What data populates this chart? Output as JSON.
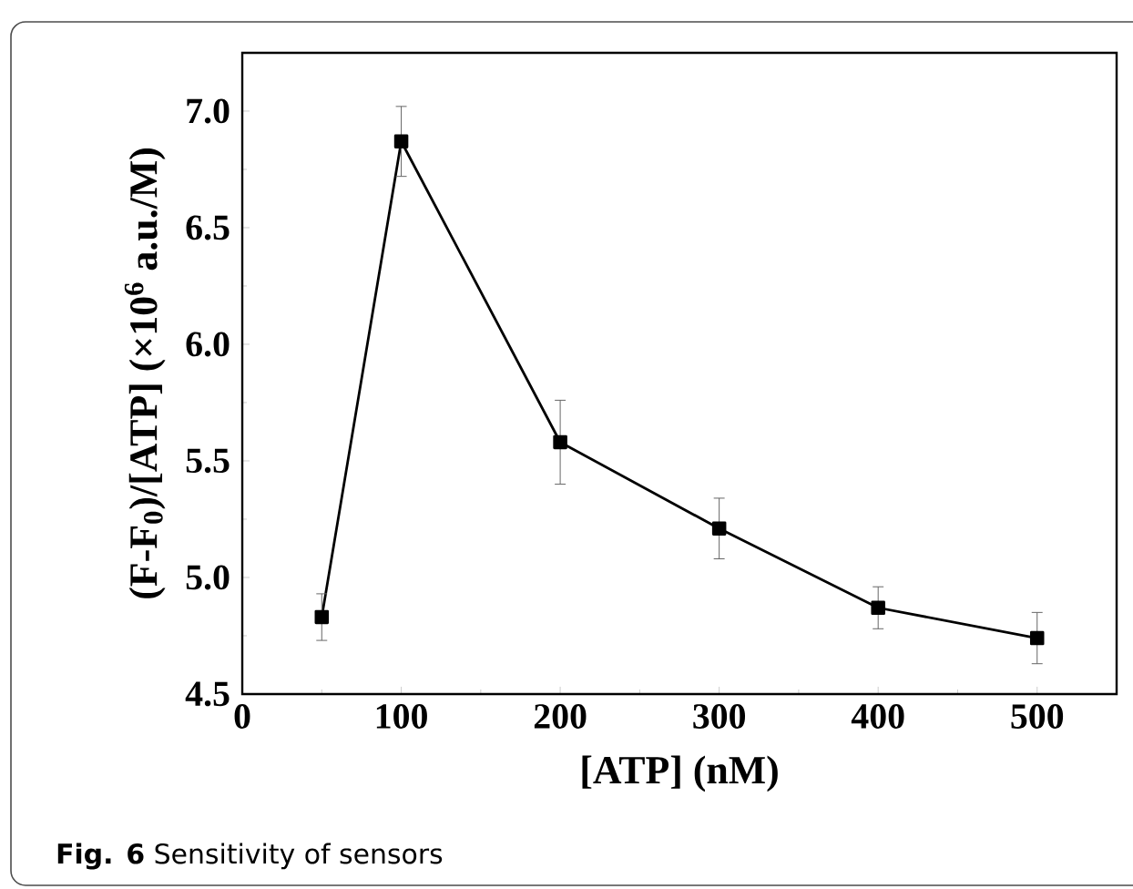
{
  "chart_data": {
    "type": "line",
    "xlabel": "[ATP] (nM)",
    "ylabel": "(F-F$_{0}$)/[ATP] (×10$^{6}$ a.u./M)",
    "annotations": [
      "**Fig. 6** Sensitivity of sensors"
    ],
    "x": [
      50,
      100,
      200,
      300,
      400,
      500
    ],
    "series": [
      {
        "color": "#000000",
        "values": [
          4.83,
          6.87,
          5.58,
          5.21,
          4.87,
          4.74
        ],
        "errors": [
          0.1,
          0.15,
          0.18,
          0.13,
          0.09,
          0.11
        ]
      }
    ],
    "xlim": [
      0,
      550
    ],
    "xticks": [
      0,
      100,
      200,
      300,
      400,
      500
    ],
    "ylim": [
      4.5,
      7.25
    ],
    "yticks": [
      {
        "value": 4.5,
        "label": "4.5"
      },
      {
        "value": 5.0,
        "label": "5.0"
      },
      {
        "value": 5.5,
        "label": "5.5"
      },
      {
        "value": 6.0,
        "label": "6.0"
      },
      {
        "value": 6.5,
        "label": "6.5"
      },
      {
        "value": 7.0,
        "label": "7.0"
      }
    ],
    "marker": "square",
    "line_style": "solid"
  }
}
